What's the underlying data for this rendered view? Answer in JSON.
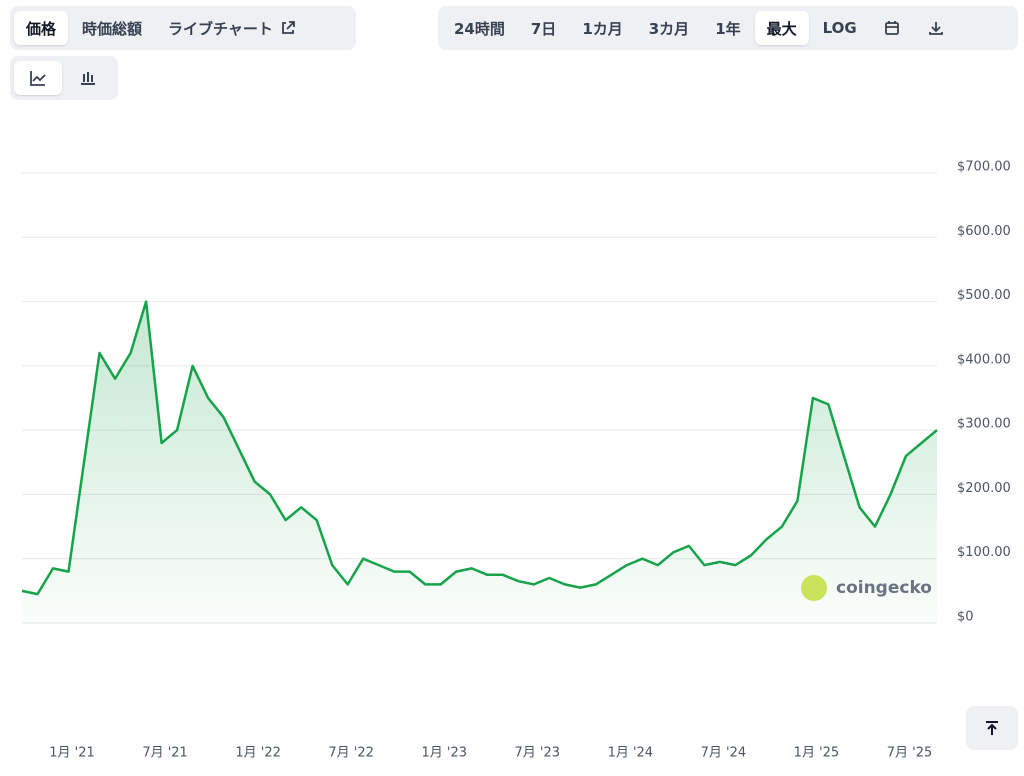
{
  "tabs": {
    "left": [
      "価格",
      "時価総額",
      "ライブチャート"
    ],
    "range": [
      "24時間",
      "7日",
      "1カ月",
      "3カ月",
      "1年",
      "最大",
      "LOG"
    ]
  },
  "watermark": "coingecko",
  "chart_data": {
    "type": "line",
    "x": [
      "2020-09",
      "2020-10",
      "2020-11",
      "2020-12",
      "2021-01",
      "2021-02",
      "2021-03",
      "2021-04",
      "2021-05",
      "2021-06",
      "2021-07",
      "2021-08",
      "2021-09",
      "2021-10",
      "2021-11",
      "2021-12",
      "2022-01",
      "2022-02",
      "2022-03",
      "2022-04",
      "2022-05",
      "2022-06",
      "2022-07",
      "2022-08",
      "2022-09",
      "2022-10",
      "2022-11",
      "2022-12",
      "2023-01",
      "2023-02",
      "2023-03",
      "2023-04",
      "2023-05",
      "2023-06",
      "2023-07",
      "2023-08",
      "2023-09",
      "2023-10",
      "2023-11",
      "2023-12",
      "2024-01",
      "2024-02",
      "2024-03",
      "2024-04",
      "2024-05",
      "2024-06",
      "2024-07",
      "2024-08",
      "2024-09",
      "2024-10",
      "2024-11",
      "2024-12",
      "2025-01",
      "2025-02",
      "2025-03",
      "2025-04",
      "2025-05",
      "2025-06",
      "2025-07",
      "2025-08"
    ],
    "values": [
      50,
      45,
      85,
      80,
      250,
      420,
      380,
      420,
      500,
      280,
      300,
      400,
      350,
      320,
      270,
      220,
      200,
      160,
      180,
      160,
      90,
      60,
      100,
      90,
      80,
      80,
      60,
      60,
      80,
      85,
      75,
      75,
      65,
      60,
      70,
      60,
      55,
      60,
      75,
      90,
      100,
      90,
      110,
      120,
      90,
      95,
      90,
      105,
      130,
      150,
      190,
      350,
      340,
      260,
      180,
      150,
      200,
      260,
      280,
      300
    ],
    "color": "#16a34a",
    "ylim": [
      0,
      700
    ],
    "yticks": [
      {
        "value": 0,
        "label": "$0"
      },
      {
        "value": 100,
        "label": "$100.00"
      },
      {
        "value": 200,
        "label": "$200.00"
      },
      {
        "value": 300,
        "label": "$300.00"
      },
      {
        "value": 400,
        "label": "$400.00"
      },
      {
        "value": 500,
        "label": "$500.00"
      },
      {
        "value": 600,
        "label": "$600.00"
      },
      {
        "value": 700,
        "label": "$700.00"
      }
    ],
    "xticks": [
      {
        "value": "2021-01",
        "label": "1月 '21"
      },
      {
        "value": "2021-07",
        "label": "7月 '21"
      },
      {
        "value": "2022-01",
        "label": "1月 '22"
      },
      {
        "value": "2022-07",
        "label": "7月 '22"
      },
      {
        "value": "2023-01",
        "label": "1月 '23"
      },
      {
        "value": "2023-07",
        "label": "7月 '23"
      },
      {
        "value": "2024-01",
        "label": "1月 '24"
      },
      {
        "value": "2024-07",
        "label": "7月 '24"
      },
      {
        "value": "2025-01",
        "label": "1月 '25"
      },
      {
        "value": "2025-07",
        "label": "7月 '25"
      }
    ],
    "grid": true
  }
}
